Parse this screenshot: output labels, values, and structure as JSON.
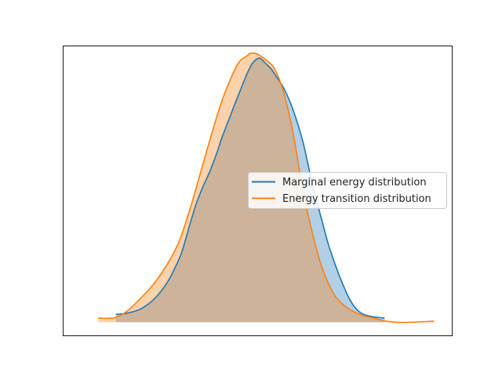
{
  "chart_data": {
    "type": "area",
    "title": "",
    "xlabel": "",
    "ylabel": "",
    "grid": false,
    "xticks": [],
    "yticks": [],
    "legend_position": "center-right",
    "xlim": [
      -0.05,
      1.05
    ],
    "ylim": [
      -0.05,
      1.05
    ],
    "series": [
      {
        "name": "Marginal energy distribution",
        "color": "#1f77b4",
        "fill_color": "#1f77b4",
        "x": [
          0.1,
          0.13,
          0.17,
          0.21,
          0.245,
          0.265,
          0.285,
          0.305,
          0.325,
          0.345,
          0.365,
          0.385,
          0.4,
          0.42,
          0.44,
          0.455,
          0.47,
          0.485,
          0.5,
          0.51,
          0.525,
          0.54,
          0.555,
          0.57,
          0.585,
          0.6,
          0.615,
          0.63,
          0.645,
          0.66,
          0.68,
          0.7,
          0.72,
          0.74,
          0.76,
          0.78,
          0.8,
          0.83,
          0.86
        ],
        "y": [
          0.03,
          0.034,
          0.05,
          0.09,
          0.15,
          0.2,
          0.26,
          0.35,
          0.44,
          0.51,
          0.57,
          0.64,
          0.7,
          0.77,
          0.84,
          0.89,
          0.94,
          0.98,
          1.0,
          1.0,
          0.98,
          0.96,
          0.93,
          0.9,
          0.86,
          0.81,
          0.75,
          0.68,
          0.59,
          0.5,
          0.4,
          0.3,
          0.22,
          0.15,
          0.09,
          0.05,
          0.03,
          0.02,
          0.016
        ]
      },
      {
        "name": "Energy transition distribution",
        "color": "#ff7f0e",
        "fill_color": "#ff7f0e",
        "x": [
          0.05,
          0.08,
          0.1,
          0.13,
          0.17,
          0.21,
          0.25,
          0.28,
          0.31,
          0.34,
          0.37,
          0.4,
          0.43,
          0.45,
          0.47,
          0.48,
          0.495,
          0.51,
          0.53,
          0.545,
          0.56,
          0.575,
          0.59,
          0.605,
          0.62,
          0.635,
          0.65,
          0.665,
          0.68,
          0.7,
          0.72,
          0.74,
          0.76,
          0.78,
          0.8,
          0.83,
          0.86,
          0.89,
          0.92,
          0.96,
          1.0
        ],
        "y": [
          0.015,
          0.015,
          0.018,
          0.04,
          0.09,
          0.15,
          0.23,
          0.31,
          0.43,
          0.57,
          0.71,
          0.84,
          0.94,
          0.99,
          1.01,
          1.02,
          1.02,
          1.01,
          0.99,
          0.97,
          0.93,
          0.87,
          0.79,
          0.69,
          0.57,
          0.46,
          0.37,
          0.29,
          0.22,
          0.15,
          0.1,
          0.07,
          0.05,
          0.035,
          0.025,
          0.015,
          0.005,
          0.0,
          -0.001,
          0.001,
          0.004
        ]
      }
    ]
  }
}
